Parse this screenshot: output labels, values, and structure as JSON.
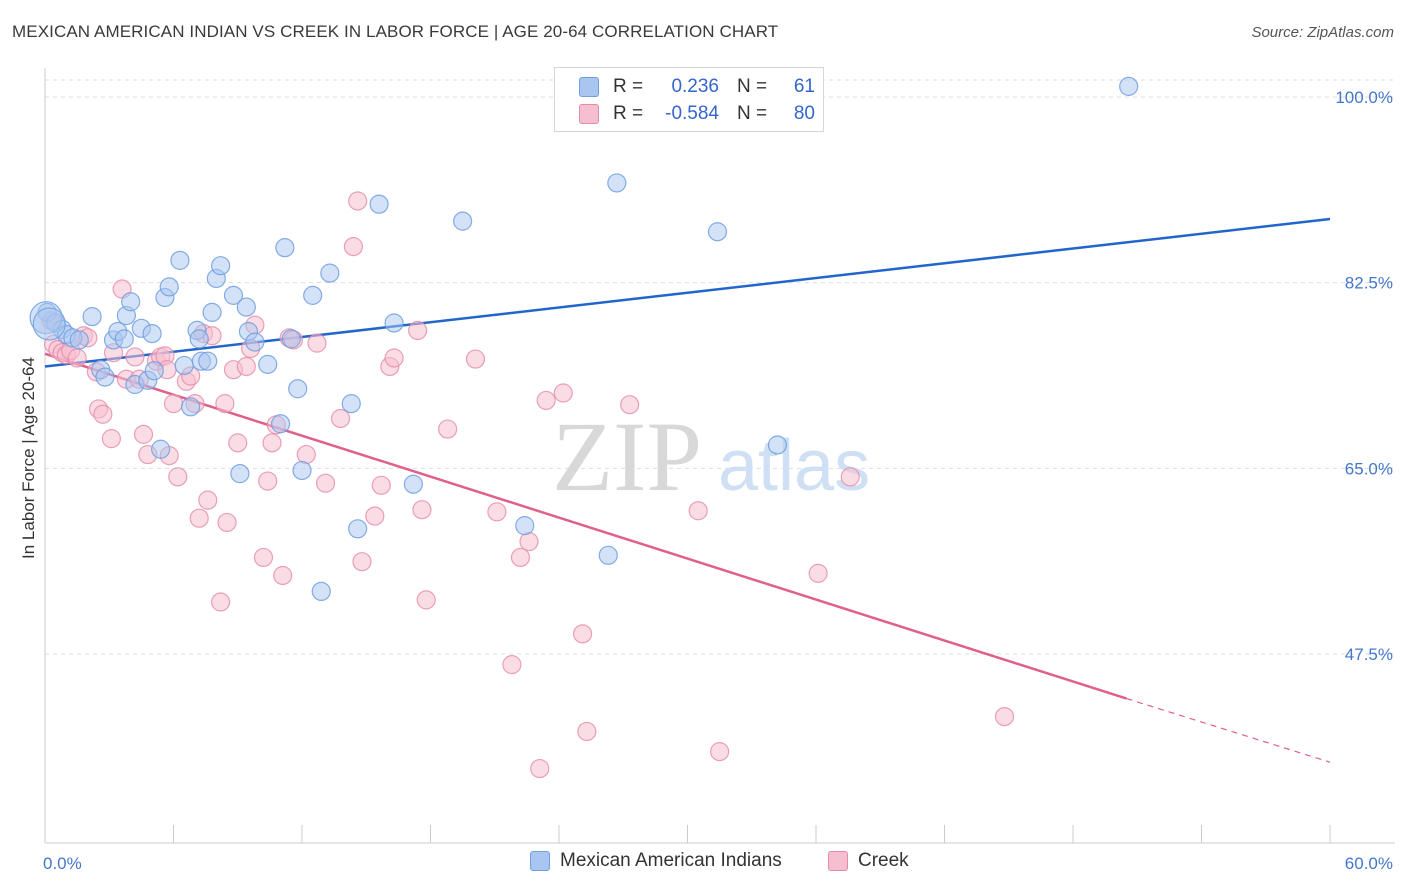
{
  "title": "MEXICAN AMERICAN INDIAN VS CREEK IN LABOR FORCE | AGE 20-64 CORRELATION CHART",
  "source": "Source: ZipAtlas.com",
  "watermark": {
    "zip": "ZIP",
    "atlas": "atlas"
  },
  "legend": {
    "rows": [
      {
        "r_label": "R =",
        "r_value": "0.236",
        "n_label": "N =",
        "n_value": "61"
      },
      {
        "r_label": "R =",
        "r_value": "-0.584",
        "n_label": "N =",
        "n_value": "80"
      }
    ]
  },
  "bottom_legend": {
    "series1": "Mexican American Indians",
    "series2": "Creek"
  },
  "colors": {
    "blue_fill": "#a9c6f0",
    "blue_stroke": "#6f9fe0",
    "blue_line": "#2266cc",
    "pink_fill": "#f6bfd0",
    "pink_stroke": "#e58aa8",
    "pink_line": "#e0608c",
    "tick_text": "#4477cc"
  },
  "chart_data": {
    "type": "scatter",
    "xlabel": "",
    "ylabel": "In Labor Force | Age 20-64",
    "xlim": [
      0,
      60
    ],
    "ylim": [
      31,
      102.5
    ],
    "x_tick_labels": [
      "0.0%",
      "60.0%"
    ],
    "y_ticks": [
      47.5,
      65.0,
      82.5,
      100.0
    ],
    "y_tick_labels": [
      "47.5%",
      "65.0%",
      "82.5%",
      "100.0%"
    ],
    "grid": true,
    "series": [
      {
        "name": "Mexican American Indians",
        "R": 0.236,
        "N": 61,
        "trend": {
          "x0": 0,
          "y0": 74.6,
          "x1": 60,
          "y1": 88.5
        },
        "points": [
          [
            0.1,
            79.7
          ],
          [
            0.5,
            78.7
          ],
          [
            0.8,
            78.1
          ],
          [
            1,
            77.6
          ],
          [
            1.3,
            77.3
          ],
          [
            1.6,
            77.1
          ],
          [
            2.2,
            79.3
          ],
          [
            2.6,
            74.3
          ],
          [
            2.8,
            73.6
          ],
          [
            3.2,
            77.1
          ],
          [
            3.4,
            77.9
          ],
          [
            3.7,
            77.2
          ],
          [
            3.8,
            79.4
          ],
          [
            4,
            80.7
          ],
          [
            4.2,
            72.9
          ],
          [
            4.5,
            78.2
          ],
          [
            4.8,
            73.3
          ],
          [
            5,
            77.7
          ],
          [
            5.1,
            74.2
          ],
          [
            5.4,
            66.8
          ],
          [
            5.6,
            81.1
          ],
          [
            5.8,
            82.1
          ],
          [
            6.3,
            84.6
          ],
          [
            6.5,
            74.7
          ],
          [
            6.8,
            70.8
          ],
          [
            7.1,
            78
          ],
          [
            7.2,
            77.2
          ],
          [
            7.3,
            75.1
          ],
          [
            7.6,
            75.1
          ],
          [
            7.8,
            79.7
          ],
          [
            8,
            82.9
          ],
          [
            8.2,
            84.1
          ],
          [
            8.8,
            81.3
          ],
          [
            9.1,
            64.5
          ],
          [
            9.4,
            80.2
          ],
          [
            9.5,
            77.9
          ],
          [
            9.8,
            76.9
          ],
          [
            10.4,
            74.8
          ],
          [
            11,
            69.2
          ],
          [
            11.2,
            85.8
          ],
          [
            11.5,
            77.2
          ],
          [
            11.8,
            72.5
          ],
          [
            12,
            64.8
          ],
          [
            12.5,
            81.3
          ],
          [
            12.9,
            53.4
          ],
          [
            13.3,
            83.4
          ],
          [
            14.3,
            71.1
          ],
          [
            14.6,
            59.3
          ],
          [
            15.6,
            89.9
          ],
          [
            16.3,
            78.7
          ],
          [
            17.2,
            63.5
          ],
          [
            19.5,
            88.3
          ],
          [
            22.4,
            59.6
          ],
          [
            26.3,
            56.8
          ],
          [
            26.7,
            91.9
          ],
          [
            29.6,
            100.9
          ],
          [
            31.4,
            87.3
          ],
          [
            34.2,
            67.2
          ],
          [
            50.6,
            101
          ],
          [
            0.05,
            79.2
          ],
          [
            0.2,
            78.6
          ]
        ]
      },
      {
        "name": "Creek",
        "R": -0.584,
        "N": 80,
        "trend": {
          "x0": 0,
          "y0": 75.8,
          "x1": 50.5,
          "y1": 43.3
        },
        "trend_dashed": {
          "x0": 50.5,
          "y0": 43.3,
          "x1": 60,
          "y1": 37.3
        },
        "points": [
          [
            0.3,
            78.9
          ],
          [
            0.4,
            76.7
          ],
          [
            0.6,
            76.2
          ],
          [
            0.8,
            75.9
          ],
          [
            1,
            75.7
          ],
          [
            1.2,
            76.1
          ],
          [
            1.5,
            75.4
          ],
          [
            1.8,
            77.5
          ],
          [
            2,
            77.3
          ],
          [
            2.4,
            74.1
          ],
          [
            2.5,
            70.6
          ],
          [
            2.7,
            70.1
          ],
          [
            3.1,
            67.8
          ],
          [
            3.2,
            75.9
          ],
          [
            3.6,
            81.9
          ],
          [
            3.8,
            73.4
          ],
          [
            4.2,
            75.5
          ],
          [
            4.4,
            73.4
          ],
          [
            4.6,
            68.2
          ],
          [
            4.8,
            66.3
          ],
          [
            5.2,
            75.1
          ],
          [
            5.4,
            75.5
          ],
          [
            5.6,
            75.6
          ],
          [
            5.7,
            74.3
          ],
          [
            5.8,
            66.2
          ],
          [
            6,
            71.1
          ],
          [
            6.2,
            64.2
          ],
          [
            6.6,
            73.2
          ],
          [
            6.8,
            73.7
          ],
          [
            7,
            71.1
          ],
          [
            7.2,
            60.3
          ],
          [
            7.4,
            77.7
          ],
          [
            7.6,
            62
          ],
          [
            7.8,
            77.5
          ],
          [
            8.2,
            52.4
          ],
          [
            8.4,
            71.1
          ],
          [
            8.5,
            59.9
          ],
          [
            8.8,
            74.3
          ],
          [
            9,
            67.4
          ],
          [
            9.4,
            74.6
          ],
          [
            9.6,
            76.3
          ],
          [
            9.8,
            78.5
          ],
          [
            10.2,
            56.6
          ],
          [
            10.4,
            63.8
          ],
          [
            10.6,
            67.4
          ],
          [
            10.8,
            69.1
          ],
          [
            11.1,
            54.9
          ],
          [
            11.4,
            77.3
          ],
          [
            11.6,
            77.1
          ],
          [
            12.2,
            66.3
          ],
          [
            12.7,
            76.8
          ],
          [
            13.1,
            63.6
          ],
          [
            13.8,
            69.7
          ],
          [
            14.4,
            85.9
          ],
          [
            14.6,
            90.2
          ],
          [
            14.8,
            56.2
          ],
          [
            15.4,
            60.5
          ],
          [
            15.7,
            63.4
          ],
          [
            16.1,
            74.6
          ],
          [
            16.3,
            75.4
          ],
          [
            17.4,
            78
          ],
          [
            17.6,
            61.1
          ],
          [
            17.8,
            52.6
          ],
          [
            18.8,
            68.7
          ],
          [
            20.1,
            75.3
          ],
          [
            21.1,
            60.9
          ],
          [
            21.8,
            46.5
          ],
          [
            22.2,
            56.6
          ],
          [
            22.6,
            58.1
          ],
          [
            23.4,
            71.4
          ],
          [
            24.2,
            72.1
          ],
          [
            25.1,
            49.4
          ],
          [
            25.3,
            40.2
          ],
          [
            27.3,
            71
          ],
          [
            30.5,
            61
          ],
          [
            31.5,
            38.3
          ],
          [
            36.1,
            55.1
          ],
          [
            37.6,
            64.2
          ],
          [
            44.8,
            41.6
          ],
          [
            23.1,
            36.7
          ]
        ]
      }
    ]
  }
}
